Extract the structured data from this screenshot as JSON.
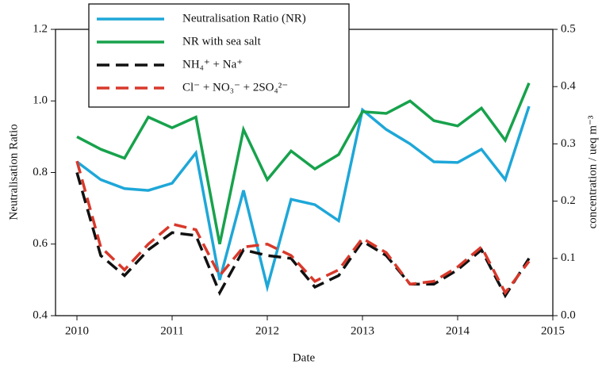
{
  "chart_data": {
    "type": "line",
    "xlabel": "Date",
    "ylabel": "Neutralisation Ratio",
    "y2label": "concentration / ueq m⁻³",
    "x": [
      2010,
      2010.25,
      2010.5,
      2010.75,
      2011,
      2011.25,
      2011.5,
      2011.75,
      2012,
      2012.25,
      2012.5,
      2012.75,
      2013,
      2013.25,
      2013.5,
      2013.75,
      2014,
      2014.25,
      2014.5,
      2014.75
    ],
    "xlim": [
      2009.775,
      2015
    ],
    "xticks": [
      2010,
      2011,
      2012,
      2013,
      2014,
      2015
    ],
    "ylim": [
      0.4,
      1.2
    ],
    "yticks": [
      0.4,
      0.6,
      0.8,
      {
        "value": 1,
        "label": "1.0"
      },
      1.2
    ],
    "y2lim": [
      0,
      0.5
    ],
    "y2ticks": [
      {
        "value": 0,
        "label": "0.0"
      },
      0.1,
      0.2,
      0.3,
      0.4,
      0.5
    ],
    "legend": "top-left",
    "series": [
      {
        "name": "Neutralisation Ratio (NR)",
        "color": "#1ea7d8",
        "linestyle": "solid",
        "values": [
          0.83,
          0.78,
          0.755,
          0.75,
          0.77,
          0.855,
          0.5,
          0.75,
          0.48,
          0.725,
          0.71,
          0.665,
          0.975,
          0.92,
          0.88,
          0.83,
          0.828,
          0.865,
          0.78,
          0.985
        ]
      },
      {
        "name": "NR with sea salt",
        "color": "#17a24c",
        "linestyle": "solid",
        "values": [
          0.9,
          0.865,
          0.84,
          0.955,
          0.925,
          0.955,
          0.6,
          0.92,
          0.78,
          0.86,
          0.81,
          0.85,
          0.97,
          0.965,
          1.0,
          0.945,
          0.93,
          0.98,
          0.89,
          1.05
        ]
      },
      {
        "name": "NH₄⁺ + Na⁺",
        "color": "#111111",
        "linestyle": "dashed",
        "axis": "y2",
        "values": [
          0.25,
          0.105,
          0.07,
          0.115,
          0.145,
          0.14,
          0.04,
          0.115,
          0.105,
          0.1,
          0.05,
          0.07,
          0.13,
          0.105,
          0.055,
          0.055,
          0.08,
          0.115,
          0.035,
          0.1
        ]
      },
      {
        "name": "Cl⁻ + NO₃⁻ + 2SO₄²⁻",
        "color": "#d8392b",
        "linestyle": "dashed",
        "axis": "y2",
        "values": [
          0.27,
          0.12,
          0.08,
          0.125,
          0.16,
          0.15,
          0.07,
          0.12,
          0.125,
          0.105,
          0.06,
          0.08,
          0.135,
          0.11,
          0.055,
          0.06,
          0.085,
          0.12,
          0.04,
          0.095
        ]
      }
    ]
  }
}
